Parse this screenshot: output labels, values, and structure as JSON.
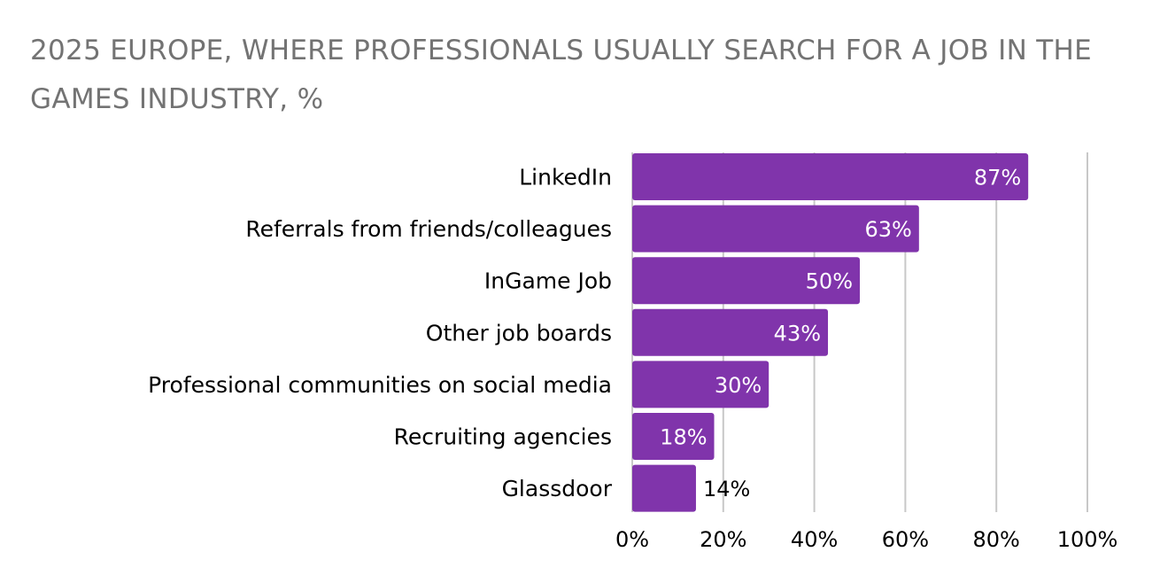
{
  "chart_data": {
    "type": "bar",
    "orientation": "horizontal",
    "title": "2025 EUROPE, WHERE PROFESSIONALS USUALLY SEARCH FOR A JOB IN THE GAMES INDUSTRY, %",
    "categories": [
      "LinkedIn",
      "Referrals from friends/colleagues",
      "InGame Job",
      "Other job boards",
      "Professional communities on social media",
      "Recruiting agencies",
      "Glassdoor"
    ],
    "values": [
      87,
      63,
      50,
      43,
      30,
      18,
      14
    ],
    "value_labels": [
      "87%",
      "63%",
      "50%",
      "43%",
      "30%",
      "18%",
      "14%"
    ],
    "xlim": [
      0,
      100
    ],
    "x_ticks": [
      0,
      20,
      40,
      60,
      80,
      100
    ],
    "x_tick_labels": [
      "0%",
      "20%",
      "40%",
      "60%",
      "80%",
      "100%"
    ],
    "grid": true,
    "legend": "none",
    "bar_color": "#8034AB",
    "grid_color": "#C8C8C8",
    "title_color": "#737373"
  }
}
